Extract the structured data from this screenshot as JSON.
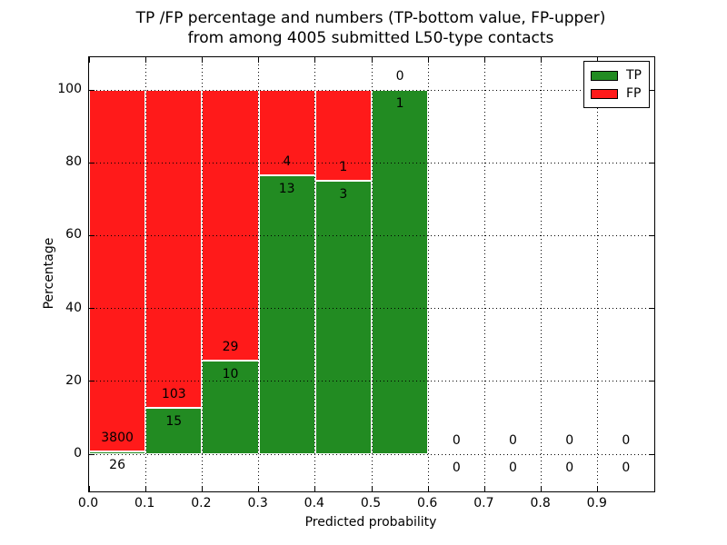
{
  "chart_data": {
    "type": "bar",
    "stacked": true,
    "normalized": "percent",
    "title_lines": [
      "TP /FP percentage and numbers (TP-bottom value, FP-upper)",
      "from among 4005 submitted L50-type contacts"
    ],
    "xlabel": "Predicted probability",
    "ylabel": "Percentage",
    "xlim": [
      0.0,
      1.0
    ],
    "ylim": [
      -10.2,
      109.0
    ],
    "grid": true,
    "legend_position": "upper right",
    "bin_width": 0.1,
    "bin_starts": [
      0.0,
      0.1,
      0.2,
      0.3,
      0.4,
      0.5,
      0.6,
      0.7,
      0.8,
      0.9
    ],
    "series": [
      {
        "name": "TP",
        "color": "#228B22",
        "counts": [
          26,
          15,
          10,
          13,
          3,
          1,
          0,
          0,
          0,
          0
        ],
        "pct": [
          0.68,
          12.71,
          25.64,
          76.47,
          75.0,
          100.0,
          0,
          0,
          0,
          0
        ]
      },
      {
        "name": "FP",
        "color": "#FF1A1A",
        "counts": [
          3800,
          103,
          29,
          4,
          1,
          0,
          0,
          0,
          0,
          0
        ],
        "pct": [
          99.32,
          87.29,
          74.36,
          23.53,
          25.0,
          0.0,
          0,
          0,
          0,
          0
        ]
      }
    ],
    "x_ticks": [
      0.0,
      0.1,
      0.2,
      0.3,
      0.4,
      0.5,
      0.6,
      0.7,
      0.8,
      0.9
    ],
    "x_tick_labels": [
      "0.0",
      "0.1",
      "0.2",
      "0.3",
      "0.4",
      "0.5",
      "0.6",
      "0.7",
      "0.8",
      "0.9"
    ],
    "y_ticks": [
      0,
      20,
      40,
      60,
      80,
      100
    ],
    "y_tick_labels": [
      "0",
      "20",
      "40",
      "60",
      "80",
      "100"
    ]
  }
}
